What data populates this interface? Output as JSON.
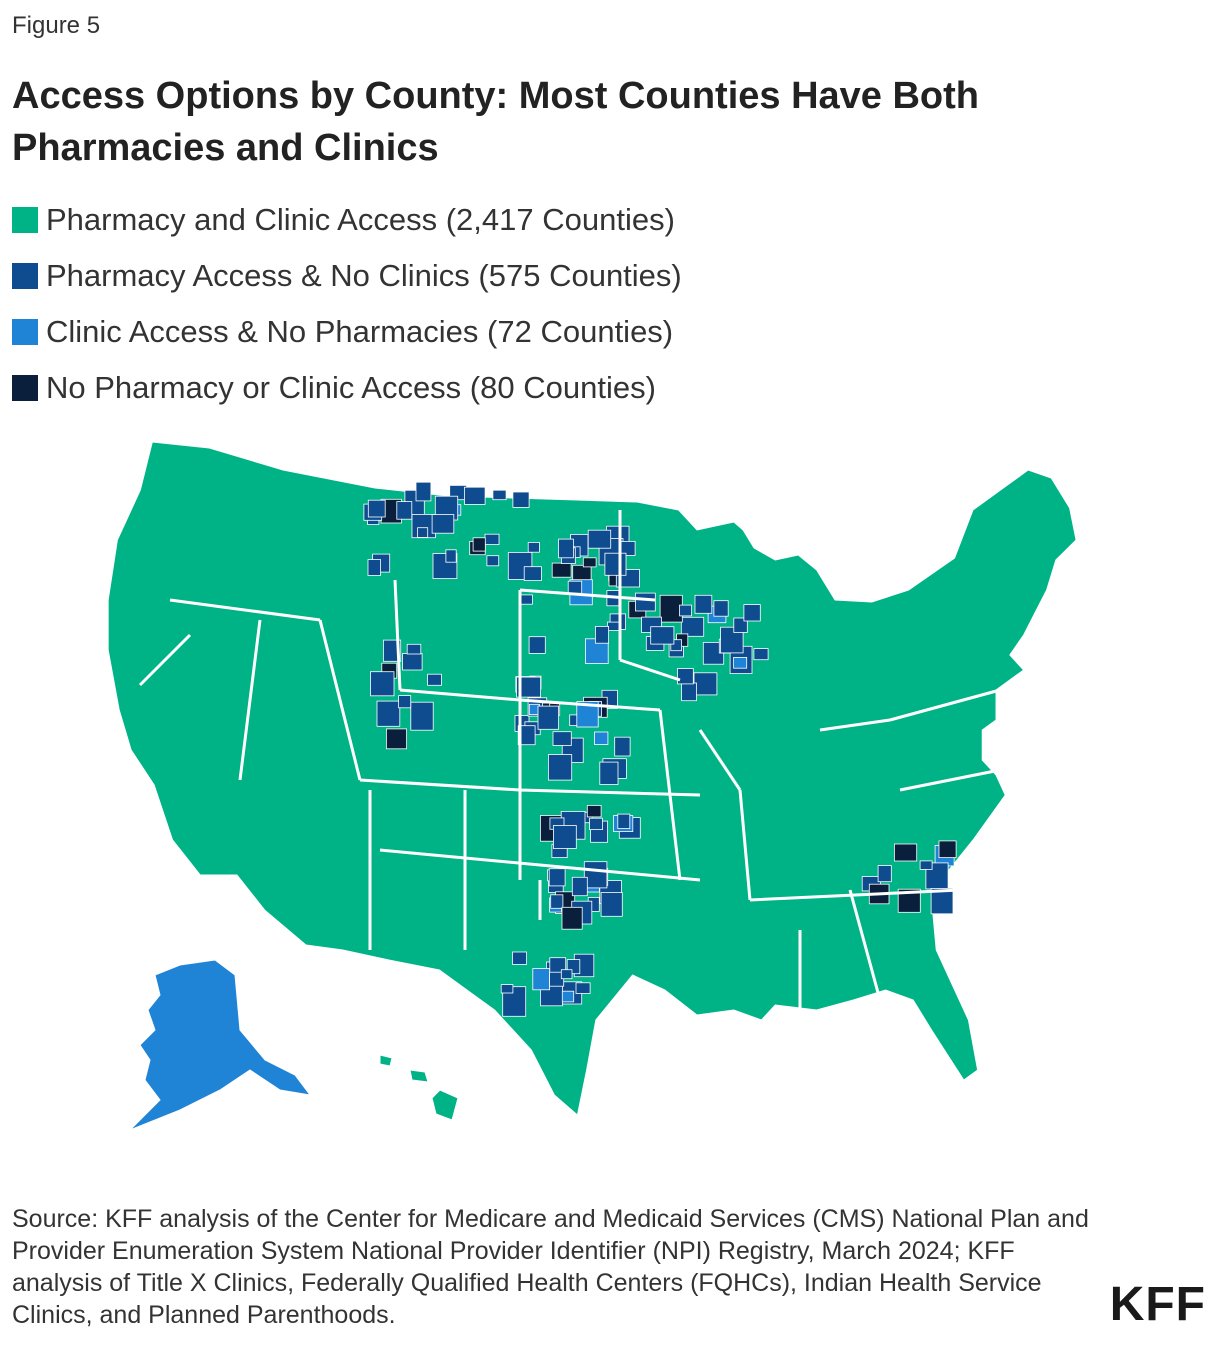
{
  "figure_label": "Figure 5",
  "title": "Access Options by County: Most Counties Have Both Pharmacies and Clinics",
  "legend": [
    {
      "label": "Pharmacy and Clinic Access (2,417 Counties)",
      "color": "#00b386"
    },
    {
      "label": "Pharmacy Access & No Clinics (575 Counties)",
      "color": "#0e4c8f"
    },
    {
      "label": "Clinic Access & No Pharmacies (72 Counties)",
      "color": "#1f83d6"
    },
    {
      "label": "No Pharmacy or Clinic Access (80 Counties)",
      "color": "#0a1f3c"
    }
  ],
  "map": {
    "type": "choropleth",
    "geography": "U.S. counties",
    "colors": {
      "pharmacy_and_clinic": "#00b386",
      "pharmacy_no_clinic": "#0e4c8f",
      "clinic_no_pharmacy": "#1f83d6",
      "none": "#0a1f3c",
      "borders": "#ffffff"
    }
  },
  "source": "Source: KFF analysis of the Center for Medicare and Medicaid Services (CMS) National Plan and Provider Enumeration System National Provider Identifier (NPI) Registry, March 2024; KFF analysis of Title X Clinics, Federally Qualified Health Centers (FQHCs), Indian Health Service Clinics, and Planned Parenthoods.",
  "logo": "KFF"
}
